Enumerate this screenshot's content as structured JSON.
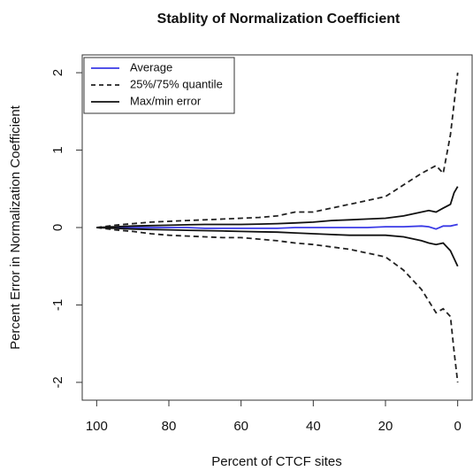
{
  "chart_data": {
    "type": "line",
    "title": "Stablity of Normalization Coefficient",
    "x_label": "Percent of CTCF sites",
    "y_label": "Percent Error in Normalization Coefficient",
    "x": [
      100,
      95,
      90,
      85,
      80,
      75,
      70,
      65,
      60,
      55,
      50,
      45,
      40,
      35,
      30,
      25,
      20,
      15,
      10,
      8,
      6,
      4,
      2,
      1,
      0
    ],
    "xlim": [
      104,
      -4
    ],
    "xticks": [
      100,
      80,
      60,
      40,
      20,
      0
    ],
    "ylim": [
      -2.23,
      2.23
    ],
    "yticks": [
      -2,
      -1,
      0,
      1,
      2
    ],
    "legend": "top-left",
    "series": [
      {
        "name": "Average",
        "color": "#3a3ae6",
        "dash": false,
        "values": [
          0,
          0,
          0,
          0,
          0,
          0,
          -0.01,
          -0.01,
          -0.01,
          -0.01,
          -0.01,
          0,
          0,
          0,
          0,
          0,
          0.01,
          0.01,
          0.02,
          0.01,
          -0.02,
          0.02,
          0.02,
          0.03,
          0.04
        ]
      },
      {
        "name": "25%/75% quantile",
        "color": "#222222",
        "dash": true,
        "values": [
          0,
          0.03,
          0.05,
          0.07,
          0.08,
          0.09,
          0.1,
          0.11,
          0.12,
          0.13,
          0.15,
          0.2,
          0.2,
          0.25,
          0.3,
          0.35,
          0.4,
          0.55,
          0.7,
          0.75,
          0.8,
          0.7,
          1.2,
          1.6,
          2.0
        ],
        "values_lower": [
          0,
          -0.03,
          -0.05,
          -0.08,
          -0.1,
          -0.11,
          -0.12,
          -0.13,
          -0.13,
          -0.15,
          -0.17,
          -0.2,
          -0.22,
          -0.25,
          -0.28,
          -0.33,
          -0.38,
          -0.55,
          -0.8,
          -0.95,
          -1.1,
          -1.05,
          -1.15,
          -1.6,
          -2.0
        ]
      },
      {
        "name": "Max/min error",
        "color": "#111111",
        "dash": false,
        "values": [
          0,
          0.01,
          0.02,
          0.025,
          0.03,
          0.035,
          0.04,
          0.04,
          0.04,
          0.045,
          0.05,
          0.06,
          0.07,
          0.09,
          0.1,
          0.11,
          0.12,
          0.15,
          0.2,
          0.22,
          0.2,
          0.25,
          0.3,
          0.45,
          0.53
        ],
        "values_lower": [
          0,
          -0.01,
          -0.02,
          -0.025,
          -0.03,
          -0.035,
          -0.04,
          -0.045,
          -0.05,
          -0.055,
          -0.06,
          -0.07,
          -0.08,
          -0.09,
          -0.1,
          -0.1,
          -0.1,
          -0.12,
          -0.17,
          -0.2,
          -0.22,
          -0.2,
          -0.3,
          -0.4,
          -0.5
        ]
      }
    ]
  }
}
